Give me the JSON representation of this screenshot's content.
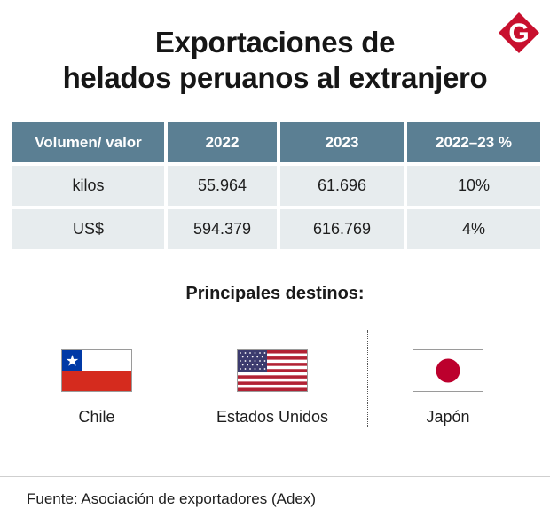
{
  "title": {
    "line1": "Exportaciones de",
    "line2": "helados peruanos al extranjero"
  },
  "logo": {
    "letter": "G",
    "color": "#c8102e"
  },
  "table": {
    "headers": [
      "Volumen/ valor",
      "2022",
      "2023",
      "2022–23 %"
    ],
    "rows": [
      [
        "kilos",
        "55.964",
        "61.696",
        "10%"
      ],
      [
        "US$",
        "594.379",
        "616.769",
        "4%"
      ]
    ],
    "header_color": "#5b7f93",
    "cell_color": "#e7ecee"
  },
  "destinations": {
    "heading": "Principales destinos:",
    "items": [
      {
        "name": "Chile",
        "flag": "chile-flag-icon"
      },
      {
        "name": "Estados Unidos",
        "flag": "usa-flag-icon"
      },
      {
        "name": "Japón",
        "flag": "japan-flag-icon"
      }
    ]
  },
  "source": "Fuente: Asociación de exportadores (Adex)"
}
